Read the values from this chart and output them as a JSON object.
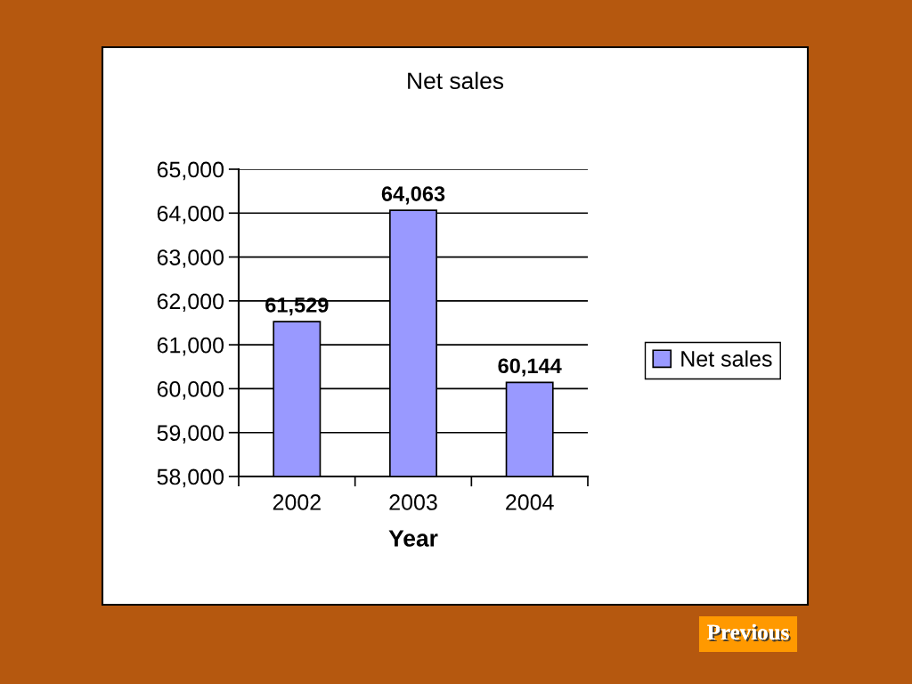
{
  "chart_data": {
    "type": "bar",
    "title": "Net sales",
    "xlabel": "Year",
    "categories": [
      "2002",
      "2003",
      "2004"
    ],
    "series": [
      {
        "name": "Net sales",
        "color": "#9999ff",
        "values": [
          61529,
          64063,
          60144
        ],
        "value_labels": [
          "61,529",
          "64,063",
          "60,144"
        ]
      }
    ],
    "ylim": [
      58000,
      65000
    ],
    "yticks": [
      {
        "value": 58000,
        "label": "58,000"
      },
      {
        "value": 59000,
        "label": "59,000"
      },
      {
        "value": 60000,
        "label": "60,000"
      },
      {
        "value": 61000,
        "label": "61,000"
      },
      {
        "value": 62000,
        "label": "62,000"
      },
      {
        "value": 63000,
        "label": "63,000"
      },
      {
        "value": 64000,
        "label": "64,000"
      },
      {
        "value": 65000,
        "label": "65,000"
      }
    ],
    "grid": "y",
    "legend": "right",
    "annotations": [
      "Previous"
    ]
  }
}
